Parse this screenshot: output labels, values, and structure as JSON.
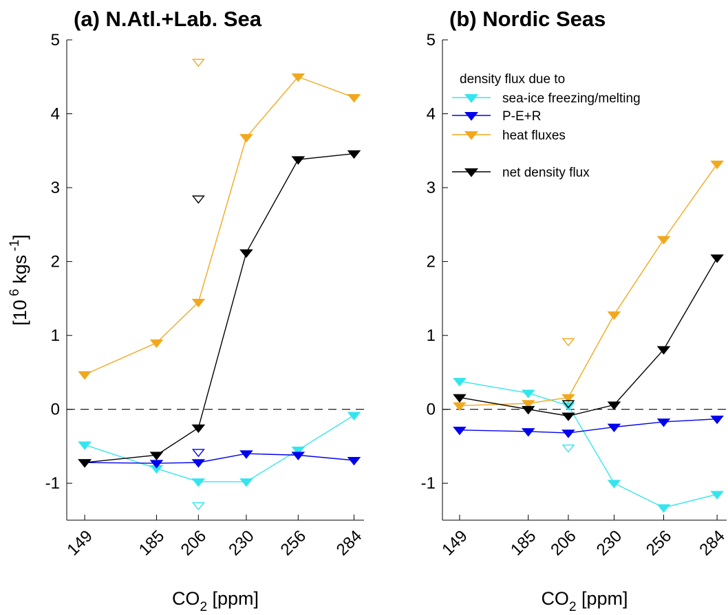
{
  "chart_data": [
    {
      "type": "line",
      "title": "(a) N.Atl.+Lab. Sea",
      "ylabel": "[10 6 kgs -1]",
      "ylabel_parts": {
        "open": "[10",
        "exp1": "6",
        "mid": " kgs",
        "exp2": "-1",
        "close": "]"
      },
      "xlabel_parts": {
        "base": "CO",
        "sub": "2",
        "rest": " [ppm]"
      },
      "x": [
        149,
        185,
        206,
        230,
        256,
        284
      ],
      "x_tick_labels": [
        "149",
        "185",
        "206",
        "230",
        "256",
        "284"
      ],
      "xlim": [
        140,
        289
      ],
      "ylim": [
        -1.5,
        5
      ],
      "y_ticks": [
        -1,
        0,
        1,
        2,
        3,
        4,
        5
      ],
      "y_tick_labels": [
        "-1",
        "0",
        "1",
        "2",
        "3",
        "4",
        "5"
      ],
      "zero_line": "dashed",
      "series": [
        {
          "key": "seaice",
          "color": "#33e6ee",
          "values": [
            -0.48,
            -0.8,
            -0.98,
            -0.98,
            -0.55,
            -0.08
          ],
          "open": {
            "x": 206,
            "y": -1.3
          }
        },
        {
          "key": "pe",
          "color": "#0000ee",
          "values": [
            -0.72,
            -0.73,
            -0.72,
            -0.6,
            -0.62,
            -0.69
          ],
          "open": {
            "x": 206,
            "y": -0.58
          }
        },
        {
          "key": "heat",
          "color": "#f2a81d",
          "values": [
            0.47,
            0.9,
            1.45,
            3.68,
            4.5,
            4.22
          ],
          "open": {
            "x": 206,
            "y": 4.7
          }
        },
        {
          "key": "net",
          "color": "#000000",
          "values": [
            -0.72,
            -0.62,
            -0.25,
            2.12,
            3.38,
            3.46
          ],
          "open": {
            "x": 206,
            "y": 2.85
          }
        }
      ]
    },
    {
      "type": "line",
      "title": "(b) Nordic Seas",
      "xlabel_parts": {
        "base": "CO",
        "sub": "2",
        "rest": " [ppm]"
      },
      "x": [
        149,
        185,
        206,
        230,
        256,
        284
      ],
      "x_tick_labels": [
        "149",
        "185",
        "206",
        "230",
        "256",
        "284"
      ],
      "xlim": [
        140,
        289
      ],
      "ylim": [
        -1.5,
        5
      ],
      "y_ticks": [
        -1,
        0,
        1,
        2,
        3,
        4,
        5
      ],
      "y_tick_labels": [
        "-1",
        "0",
        "1",
        "2",
        "3",
        "4",
        "5"
      ],
      "zero_line": "dashed",
      "legend_position": "top-left",
      "legend_heading": "density flux due to",
      "series": [
        {
          "key": "seaice",
          "name": "sea-ice freezing/melting",
          "color": "#33e6ee",
          "values": [
            0.38,
            0.22,
            0.05,
            -1.0,
            -1.33,
            -1.15
          ],
          "open": {
            "x": 206,
            "y": -0.52
          }
        },
        {
          "key": "pe",
          "name": "P-E+R",
          "color": "#0000ee",
          "values": [
            -0.28,
            -0.3,
            -0.32,
            -0.24,
            -0.17,
            -0.13
          ],
          "open": null
        },
        {
          "key": "heat",
          "name": "heat fluxes",
          "color": "#f2a81d",
          "values": [
            0.05,
            0.08,
            0.16,
            1.28,
            2.3,
            3.32
          ],
          "open": {
            "x": 206,
            "y": 0.92
          }
        },
        {
          "key": "net",
          "name": "net density flux",
          "color": "#000000",
          "values": [
            0.16,
            0.0,
            -0.09,
            0.06,
            0.81,
            2.05
          ],
          "open": {
            "x": 206,
            "y": 0.08
          }
        }
      ]
    }
  ]
}
